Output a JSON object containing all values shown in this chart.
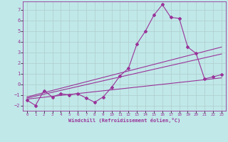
{
  "xlabel": "Windchill (Refroidissement éolien,°C)",
  "bg_color": "#c0e8e8",
  "grid_color": "#b0cccc",
  "line_color": "#993399",
  "xlim": [
    -0.5,
    23.5
  ],
  "ylim": [
    -2.5,
    7.8
  ],
  "yticks": [
    -2,
    -1,
    0,
    1,
    2,
    3,
    4,
    5,
    6,
    7
  ],
  "xticks": [
    0,
    1,
    2,
    3,
    4,
    5,
    6,
    7,
    8,
    9,
    10,
    11,
    12,
    13,
    14,
    15,
    16,
    17,
    18,
    19,
    20,
    21,
    22,
    23
  ],
  "line1_x": [
    0,
    1,
    2,
    3,
    4,
    5,
    6,
    7,
    8,
    9,
    10,
    11,
    12,
    13,
    14,
    15,
    16,
    17,
    18,
    19,
    20,
    21,
    22,
    23
  ],
  "line1_y": [
    -1.5,
    -2.0,
    -0.6,
    -1.2,
    -0.9,
    -1.0,
    -0.9,
    -1.3,
    -1.7,
    -1.2,
    -0.3,
    0.8,
    1.5,
    3.8,
    5.0,
    6.5,
    7.5,
    6.3,
    6.2,
    3.5,
    2.9,
    0.5,
    0.7,
    0.9
  ],
  "line2_x": [
    0,
    23
  ],
  "line2_y": [
    -1.4,
    0.6
  ],
  "line3_x": [
    0,
    23
  ],
  "line3_y": [
    -1.3,
    2.85
  ],
  "line4_x": [
    0,
    23
  ],
  "line4_y": [
    -1.2,
    3.5
  ]
}
